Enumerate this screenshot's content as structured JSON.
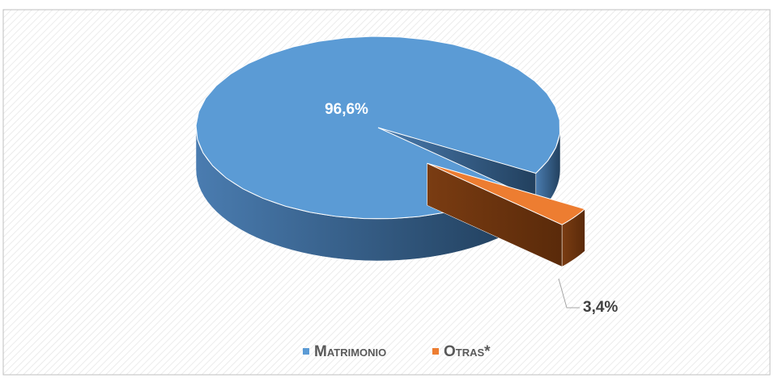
{
  "chart_data": {
    "type": "pie",
    "categories": [
      "Matrimonio",
      "Otras*"
    ],
    "values": [
      96.6,
      3.4
    ],
    "value_labels": [
      "96,6%",
      "3,4%"
    ],
    "colors": [
      "#5b9bd5",
      "#ed7d31"
    ]
  }
}
